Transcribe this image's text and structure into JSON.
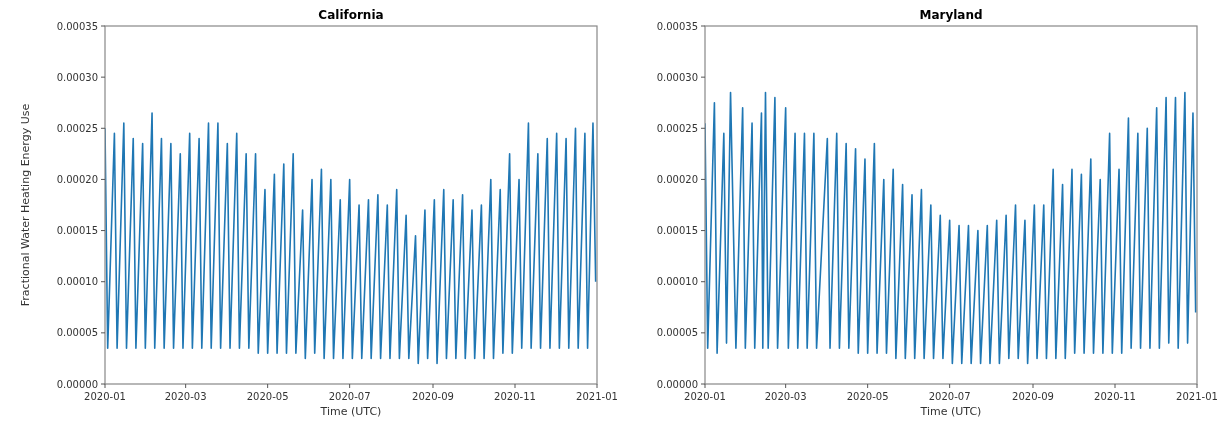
{
  "chart_data": [
    {
      "type": "line",
      "title": "California",
      "xlabel": "Time (UTC)",
      "ylabel": "Fractional Water Heating Energy Use",
      "xlim": [
        "2020-01-01",
        "2021-01-01"
      ],
      "xticks": [
        "2020-01",
        "2020-03",
        "2020-05",
        "2020-07",
        "2020-09",
        "2020-11",
        "2021-01"
      ],
      "ylim": [
        0,
        0.00035
      ],
      "yticks": [
        {
          "value": 0,
          "label": "0.00000"
        },
        {
          "value": 5e-05,
          "label": "0.00005"
        },
        {
          "value": 0.0001,
          "label": "0.00010"
        },
        {
          "value": 0.00015,
          "label": "0.00015"
        },
        {
          "value": 0.0002,
          "label": "0.00020"
        },
        {
          "value": 0.00025,
          "label": "0.00025"
        },
        {
          "value": 0.0003,
          "label": "0.00030"
        },
        {
          "value": 0.00035,
          "label": "0.00035"
        }
      ],
      "marker": "none",
      "line_style": "solid",
      "series": [
        {
          "color": "#1f77b4",
          "x": [
            "2020-01-01",
            "2020-01-03",
            "2020-01-08",
            "2020-01-10",
            "2020-01-15",
            "2020-01-17",
            "2020-01-22",
            "2020-01-24",
            "2020-01-29",
            "2020-01-31",
            "2020-02-05",
            "2020-02-07",
            "2020-02-12",
            "2020-02-14",
            "2020-02-19",
            "2020-02-21",
            "2020-02-26",
            "2020-02-28",
            "2020-03-04",
            "2020-03-06",
            "2020-03-11",
            "2020-03-13",
            "2020-03-18",
            "2020-03-20",
            "2020-03-25",
            "2020-03-27",
            "2020-04-01",
            "2020-04-03",
            "2020-04-08",
            "2020-04-10",
            "2020-04-15",
            "2020-04-17",
            "2020-04-22",
            "2020-04-24",
            "2020-04-29",
            "2020-05-01",
            "2020-05-06",
            "2020-05-08",
            "2020-05-13",
            "2020-05-15",
            "2020-05-20",
            "2020-05-22",
            "2020-05-27",
            "2020-05-29",
            "2020-06-03",
            "2020-06-05",
            "2020-06-10",
            "2020-06-12",
            "2020-06-17",
            "2020-06-19",
            "2020-06-24",
            "2020-06-26",
            "2020-07-01",
            "2020-07-03",
            "2020-07-08",
            "2020-07-10",
            "2020-07-15",
            "2020-07-17",
            "2020-07-22",
            "2020-07-24",
            "2020-07-29",
            "2020-07-31",
            "2020-08-05",
            "2020-08-07",
            "2020-08-12",
            "2020-08-14",
            "2020-08-19",
            "2020-08-21",
            "2020-08-26",
            "2020-08-28",
            "2020-09-02",
            "2020-09-04",
            "2020-09-09",
            "2020-09-11",
            "2020-09-16",
            "2020-09-18",
            "2020-09-23",
            "2020-09-25",
            "2020-09-30",
            "2020-10-02",
            "2020-10-07",
            "2020-10-09",
            "2020-10-14",
            "2020-10-16",
            "2020-10-21",
            "2020-10-23",
            "2020-10-28",
            "2020-10-30",
            "2020-11-04",
            "2020-11-06",
            "2020-11-11",
            "2020-11-13",
            "2020-11-18",
            "2020-11-20",
            "2020-11-25",
            "2020-11-27",
            "2020-12-02",
            "2020-12-04",
            "2020-12-09",
            "2020-12-11",
            "2020-12-16",
            "2020-12-18",
            "2020-12-23",
            "2020-12-25",
            "2020-12-29",
            "2020-12-31"
          ],
          "values": [
            0.00025,
            3.5e-05,
            0.000245,
            3.5e-05,
            0.000255,
            3.5e-05,
            0.00024,
            3.5e-05,
            0.000235,
            3.5e-05,
            0.000265,
            3.5e-05,
            0.00024,
            3.5e-05,
            0.000235,
            3.5e-05,
            0.000225,
            3.5e-05,
            0.000245,
            3.5e-05,
            0.00024,
            3.5e-05,
            0.000255,
            3.5e-05,
            0.000255,
            3.5e-05,
            0.000235,
            3.5e-05,
            0.000245,
            3.5e-05,
            0.000225,
            3.5e-05,
            0.000225,
            3e-05,
            0.00019,
            3e-05,
            0.000205,
            3e-05,
            0.000215,
            3e-05,
            0.000225,
            3e-05,
            0.00017,
            2.5e-05,
            0.0002,
            3e-05,
            0.00021,
            2.5e-05,
            0.0002,
            2.5e-05,
            0.00018,
            2.5e-05,
            0.0002,
            2.5e-05,
            0.000175,
            2.5e-05,
            0.00018,
            2.5e-05,
            0.000185,
            2.5e-05,
            0.000175,
            2.5e-05,
            0.00019,
            2.5e-05,
            0.000165,
            2.5e-05,
            0.000145,
            2e-05,
            0.00017,
            2.5e-05,
            0.00018,
            2e-05,
            0.00019,
            2.5e-05,
            0.00018,
            2.5e-05,
            0.000185,
            2.5e-05,
            0.00017,
            2.5e-05,
            0.000175,
            2.5e-05,
            0.0002,
            2.5e-05,
            0.00019,
            3e-05,
            0.000225,
            3e-05,
            0.0002,
            3.5e-05,
            0.000255,
            3.5e-05,
            0.000225,
            3.5e-05,
            0.00024,
            3.5e-05,
            0.000245,
            3.5e-05,
            0.00024,
            3.5e-05,
            0.00025,
            3.5e-05,
            0.000245,
            3.5e-05,
            0.000255,
            0.0001
          ]
        }
      ]
    },
    {
      "type": "line",
      "title": "Maryland",
      "xlabel": "Time (UTC)",
      "xlim": [
        "2020-01-01",
        "2021-01-01"
      ],
      "xticks": [
        "2020-01",
        "2020-03",
        "2020-05",
        "2020-07",
        "2020-09",
        "2020-11",
        "2021-01"
      ],
      "ylim": [
        0,
        0.00035
      ],
      "yticks": [
        {
          "value": 0,
          "label": "0.00000"
        },
        {
          "value": 5e-05,
          "label": "0.00005"
        },
        {
          "value": 0.0001,
          "label": "0.00010"
        },
        {
          "value": 0.00015,
          "label": "0.00015"
        },
        {
          "value": 0.0002,
          "label": "0.00020"
        },
        {
          "value": 0.00025,
          "label": "0.00025"
        },
        {
          "value": 0.0003,
          "label": "0.00030"
        },
        {
          "value": 0.00035,
          "label": "0.00035"
        }
      ],
      "marker": "none",
      "line_style": "solid",
      "series": [
        {
          "color": "#1f77b4",
          "x": [
            "2020-01-01",
            "2020-01-03",
            "2020-01-08",
            "2020-01-10",
            "2020-01-15",
            "2020-01-17",
            "2020-01-20",
            "2020-01-24",
            "2020-01-29",
            "2020-01-31",
            "2020-02-05",
            "2020-02-07",
            "2020-02-12",
            "2020-02-13",
            "2020-02-15",
            "2020-02-17",
            "2020-02-22",
            "2020-02-24",
            "2020-03-01",
            "2020-03-03",
            "2020-03-08",
            "2020-03-10",
            "2020-03-15",
            "2020-03-17",
            "2020-03-22",
            "2020-03-24",
            "2020-04-01",
            "2020-04-03",
            "2020-04-08",
            "2020-04-10",
            "2020-04-15",
            "2020-04-17",
            "2020-04-22",
            "2020-04-24",
            "2020-04-29",
            "2020-05-01",
            "2020-05-06",
            "2020-05-08",
            "2020-05-13",
            "2020-05-15",
            "2020-05-20",
            "2020-05-22",
            "2020-05-27",
            "2020-05-29",
            "2020-06-03",
            "2020-06-05",
            "2020-06-10",
            "2020-06-12",
            "2020-06-17",
            "2020-06-19",
            "2020-06-24",
            "2020-06-26",
            "2020-07-01",
            "2020-07-03",
            "2020-07-08",
            "2020-07-10",
            "2020-07-15",
            "2020-07-17",
            "2020-07-22",
            "2020-07-24",
            "2020-07-29",
            "2020-07-31",
            "2020-08-05",
            "2020-08-07",
            "2020-08-12",
            "2020-08-14",
            "2020-08-19",
            "2020-08-21",
            "2020-08-26",
            "2020-08-28",
            "2020-09-02",
            "2020-09-04",
            "2020-09-09",
            "2020-09-11",
            "2020-09-16",
            "2020-09-18",
            "2020-09-23",
            "2020-09-25",
            "2020-09-30",
            "2020-10-02",
            "2020-10-07",
            "2020-10-09",
            "2020-10-14",
            "2020-10-16",
            "2020-10-21",
            "2020-10-23",
            "2020-10-28",
            "2020-10-30",
            "2020-11-04",
            "2020-11-06",
            "2020-11-11",
            "2020-11-13",
            "2020-11-18",
            "2020-11-20",
            "2020-11-25",
            "2020-11-27",
            "2020-12-02",
            "2020-12-04",
            "2020-12-09",
            "2020-12-11",
            "2020-12-16",
            "2020-12-18",
            "2020-12-23",
            "2020-12-25",
            "2020-12-29",
            "2020-12-31"
          ],
          "values": [
            0.000255,
            3.5e-05,
            0.000275,
            3e-05,
            0.000245,
            4e-05,
            0.000285,
            3.5e-05,
            0.00027,
            3.5e-05,
            0.000255,
            3.5e-05,
            0.000265,
            3.5e-05,
            0.000285,
            3.5e-05,
            0.00028,
            3.5e-05,
            0.00027,
            3.5e-05,
            0.000245,
            3.5e-05,
            0.000245,
            3.5e-05,
            0.000245,
            3.5e-05,
            0.00024,
            3.5e-05,
            0.000245,
            3.5e-05,
            0.000235,
            3.5e-05,
            0.00023,
            3e-05,
            0.00022,
            3e-05,
            0.000235,
            3e-05,
            0.0002,
            3e-05,
            0.00021,
            2.5e-05,
            0.000195,
            2.5e-05,
            0.000185,
            2.5e-05,
            0.00019,
            2.5e-05,
            0.000175,
            2.5e-05,
            0.000165,
            2.5e-05,
            0.00016,
            2e-05,
            0.000155,
            2e-05,
            0.000155,
            2e-05,
            0.00015,
            2e-05,
            0.000155,
            2e-05,
            0.00016,
            2e-05,
            0.000165,
            2.5e-05,
            0.000175,
            2.5e-05,
            0.00016,
            2e-05,
            0.000175,
            2.5e-05,
            0.000175,
            2.5e-05,
            0.00021,
            2.5e-05,
            0.000195,
            2.5e-05,
            0.00021,
            3e-05,
            0.000205,
            3e-05,
            0.00022,
            3e-05,
            0.0002,
            3e-05,
            0.000245,
            3e-05,
            0.00021,
            3e-05,
            0.00026,
            3.5e-05,
            0.000245,
            3.5e-05,
            0.00025,
            3.5e-05,
            0.00027,
            3.5e-05,
            0.00028,
            4e-05,
            0.00028,
            3.5e-05,
            0.000285,
            4e-05,
            0.000265,
            7e-05
          ]
        }
      ]
    }
  ]
}
